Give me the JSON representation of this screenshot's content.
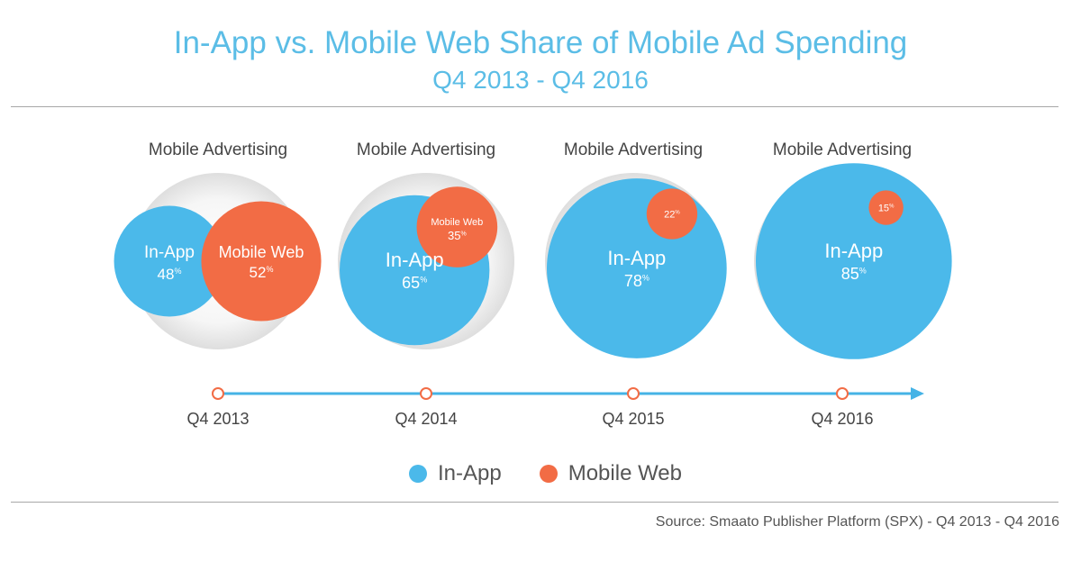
{
  "header": {
    "title": "In-App vs. Mobile Web Share of Mobile Ad Spending",
    "subtitle": "Q4 2013 - Q4 2016"
  },
  "legend": {
    "in_app": "In-App",
    "mobile_web": "Mobile Web"
  },
  "footer": {
    "source": "Source: Smaato Publisher Platform (SPX) - Q4 2013 - Q4 2016"
  },
  "colors": {
    "in_app": "#4bb9ea",
    "mobile_web": "#f26c45",
    "timeline": "#45b3e6",
    "marker": "#f26c45",
    "outer_circle": "#f1f1f1"
  },
  "chart_data": {
    "type": "bubble",
    "panel_label": "Mobile Advertising",
    "categories": [
      "Q4 2013",
      "Q4 2014",
      "Q4 2015",
      "Q4 2016"
    ],
    "series": [
      {
        "name": "In-App",
        "values": [
          48,
          65,
          78,
          85
        ]
      },
      {
        "name": "Mobile Web",
        "values": [
          52,
          35,
          22,
          15
        ]
      }
    ],
    "unit": "%",
    "mobile_web_labels": [
      "Mobile Web",
      "Mobile Web",
      "",
      ""
    ]
  }
}
